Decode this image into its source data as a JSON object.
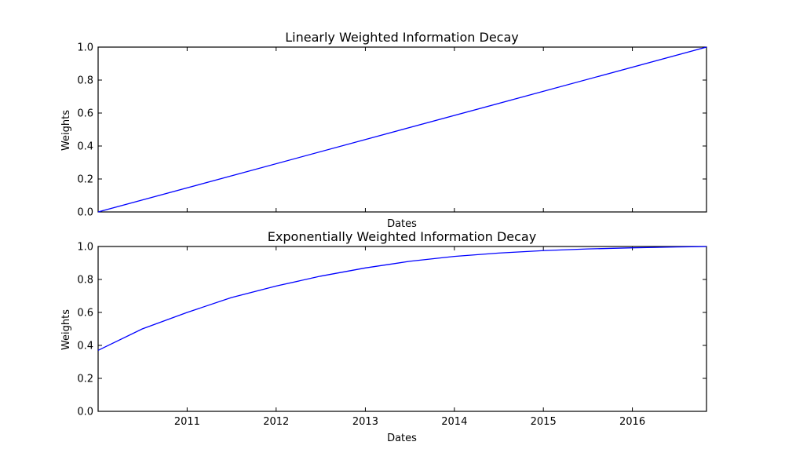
{
  "chart_data": [
    {
      "type": "line",
      "title": "Linearly Weighted Information Decay",
      "xlabel": "Dates",
      "ylabel": "Weights",
      "x_range": [
        "2010-01-01",
        "2016-10-31"
      ],
      "ylim": [
        0,
        1
      ],
      "yticks": [
        "0.0",
        "0.2",
        "0.4",
        "0.6",
        "0.8",
        "1.0"
      ],
      "xticks": [
        "2011",
        "2012",
        "2013",
        "2014",
        "2015",
        "2016"
      ],
      "xtick_labels_visible": false,
      "grid": false,
      "line_color": "#0000ff",
      "series": [
        {
          "x": [
            "2010-01-01",
            "2016-10-31"
          ],
          "y": [
            0.0,
            1.0
          ]
        }
      ]
    },
    {
      "type": "line",
      "title": "Exponentially Weighted Information Decay",
      "xlabel": "Dates",
      "ylabel": "Weights",
      "x_range": [
        "2010-01-01",
        "2016-10-31"
      ],
      "ylim": [
        0,
        1
      ],
      "yticks": [
        "0.0",
        "0.2",
        "0.4",
        "0.6",
        "0.8",
        "1.0"
      ],
      "xticks": [
        "2011",
        "2012",
        "2013",
        "2014",
        "2015",
        "2016"
      ],
      "xtick_labels_visible": true,
      "grid": false,
      "line_color": "#0000ff",
      "series": [
        {
          "x": [
            "2010-01-01",
            "2010-07-01",
            "2011-01-01",
            "2011-07-01",
            "2012-01-01",
            "2012-07-01",
            "2013-01-01",
            "2013-07-01",
            "2014-01-01",
            "2014-07-01",
            "2015-01-01",
            "2015-07-01",
            "2016-01-01",
            "2016-07-01",
            "2016-10-31"
          ],
          "y": [
            0.37,
            0.5,
            0.6,
            0.69,
            0.76,
            0.82,
            0.87,
            0.91,
            0.94,
            0.96,
            0.975,
            0.985,
            0.992,
            0.997,
            1.0
          ]
        }
      ]
    }
  ]
}
